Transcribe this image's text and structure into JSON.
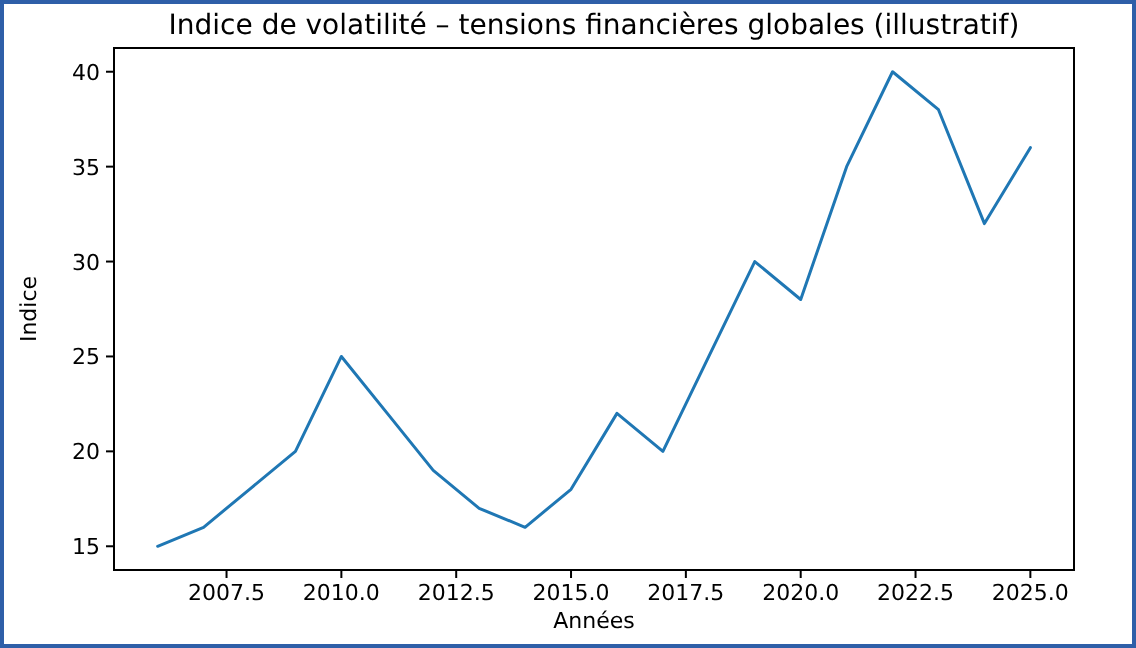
{
  "chart_data": {
    "type": "line",
    "title": "Indice de volatilité – tensions financières globales (illustratif)",
    "xlabel": "Années",
    "ylabel": "Indice",
    "x": [
      2006,
      2007,
      2008,
      2009,
      2010,
      2011,
      2012,
      2013,
      2014,
      2015,
      2016,
      2017,
      2018,
      2019,
      2020,
      2021,
      2022,
      2023,
      2024,
      2025
    ],
    "series": [
      {
        "color": "#1f77b4",
        "values": [
          15,
          16,
          18,
          20,
          25,
          22,
          19,
          17,
          16,
          18,
          22,
          20,
          25,
          30,
          28,
          35,
          40,
          38,
          32,
          36
        ]
      }
    ],
    "xlim": [
      2005.05,
      2025.95
    ],
    "ylim": [
      13.75,
      41.25
    ],
    "xticks": [
      {
        "value": 2007.5,
        "label": "2007.5"
      },
      {
        "value": 2010,
        "label": "2010.0"
      },
      {
        "value": 2012.5,
        "label": "2012.5"
      },
      {
        "value": 2015,
        "label": "2015.0"
      },
      {
        "value": 2017.5,
        "label": "2017.5"
      },
      {
        "value": 2020,
        "label": "2020.0"
      },
      {
        "value": 2022.5,
        "label": "2022.5"
      },
      {
        "value": 2025,
        "label": "2025.0"
      }
    ],
    "yticks": [
      15,
      20,
      25,
      30,
      35,
      40
    ],
    "grid": false,
    "marker": "none",
    "line_style": "solid"
  }
}
